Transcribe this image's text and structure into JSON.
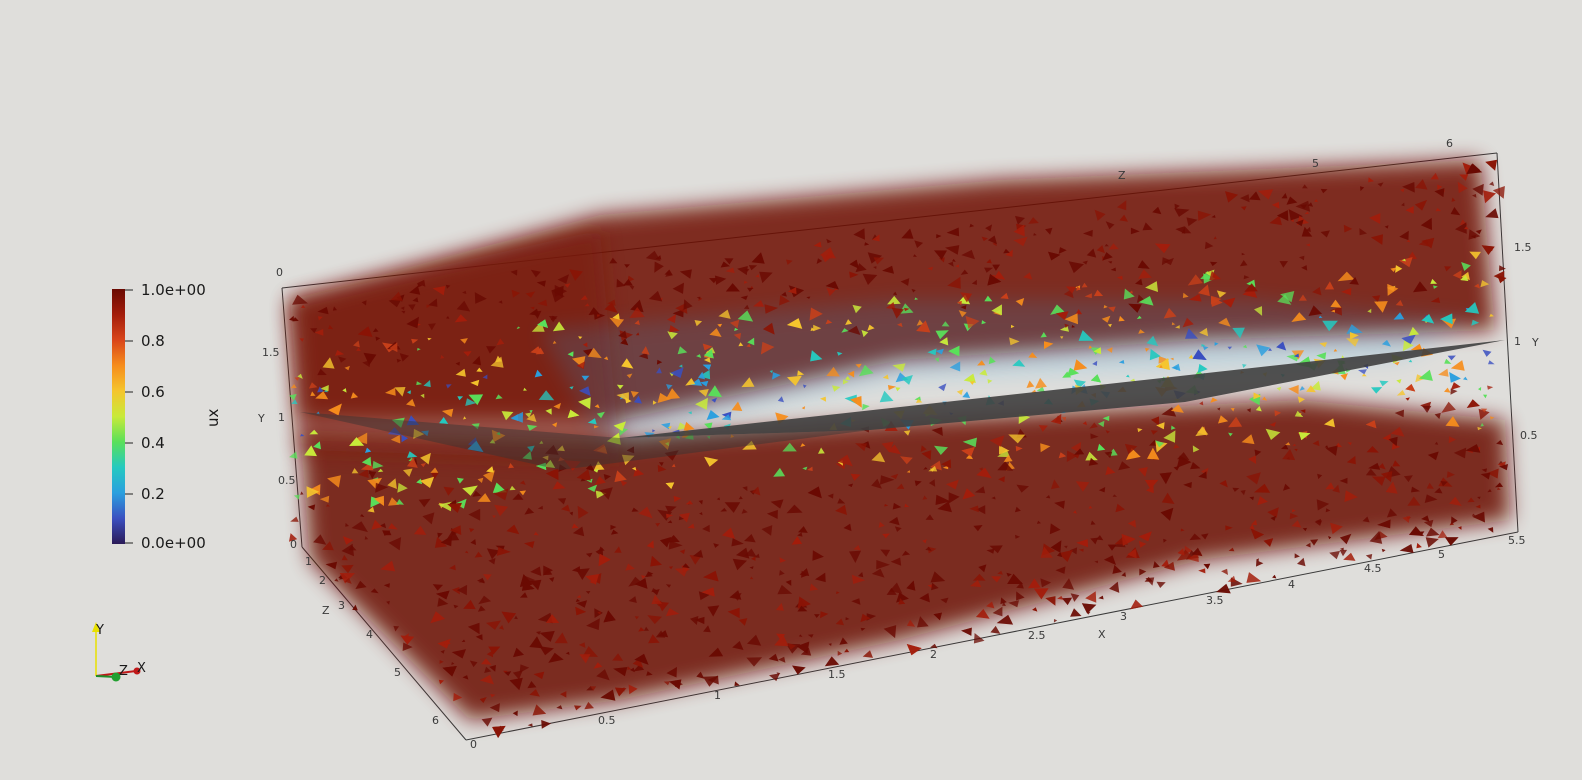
{
  "colorbar": {
    "title": "ux",
    "labels": [
      "1.0e+00",
      "0.8",
      "0.6",
      "0.4",
      "0.2",
      "0.0e+00"
    ],
    "colormap": [
      "#2b1a57",
      "#3a4fc0",
      "#2a9fdf",
      "#24c9c0",
      "#59e05a",
      "#c8ea3a",
      "#f5c52d",
      "#f68d1c",
      "#d9451a",
      "#a31d0b",
      "#6a0a02"
    ]
  },
  "axes": {
    "x_title": "X",
    "y_title": "Y",
    "z_title": "Z",
    "x_ticks": [
      "0",
      "0.5",
      "1",
      "1.5",
      "2",
      "2.5",
      "3",
      "3.5",
      "4",
      "4.5",
      "5",
      "5.5"
    ],
    "y_ticks_left": [
      "0",
      "0.5",
      "1",
      "1.5"
    ],
    "y_ticks_right": [
      "0.5",
      "1",
      "1.5"
    ],
    "z_ticks_left": [
      "1",
      "2",
      "3",
      "4",
      "5",
      "6"
    ],
    "z_ticks_top": [
      "0",
      "5",
      "6"
    ]
  },
  "orientation": {
    "x": "X",
    "y": "Y",
    "z": "Z"
  },
  "colors": {
    "background": "#dfdedb",
    "dark_red": "#6a0a02",
    "plane": "#3f3f3f",
    "axis_line": "#3a3a3a"
  }
}
